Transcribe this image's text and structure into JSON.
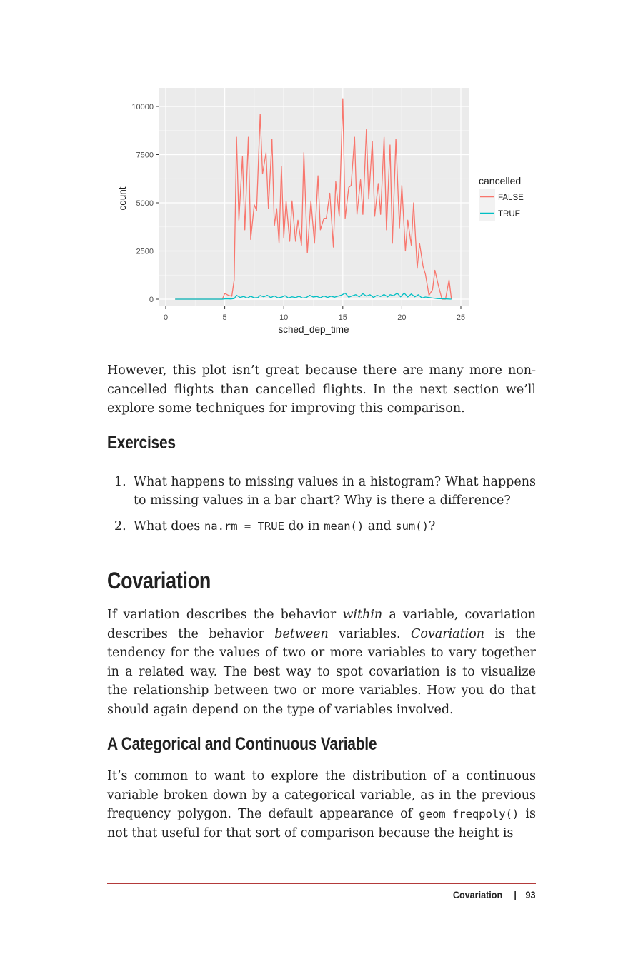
{
  "chart_data": {
    "type": "line",
    "xlabel": "sched_dep_time",
    "ylabel": "count",
    "xlim": [
      0,
      25
    ],
    "ylim": [
      0,
      10000
    ],
    "xticks": [
      "0",
      "5",
      "10",
      "15",
      "20",
      "25"
    ],
    "yticks": [
      "0",
      "2500",
      "5000",
      "7500",
      "10000"
    ],
    "legend_title": "cancelled",
    "legend_position": "right",
    "grid": true,
    "series": [
      {
        "name": "FALSE",
        "color": "#F8766D",
        "x": [
          0.8,
          4.8,
          5.0,
          5.3,
          5.6,
          5.8,
          6.0,
          6.2,
          6.5,
          6.7,
          7.0,
          7.2,
          7.5,
          7.7,
          8.0,
          8.2,
          8.5,
          8.7,
          9.0,
          9.2,
          9.4,
          9.6,
          9.8,
          10.0,
          10.2,
          10.5,
          10.7,
          11.0,
          11.2,
          11.5,
          11.7,
          12.0,
          12.3,
          12.6,
          12.9,
          13.1,
          13.4,
          13.6,
          13.9,
          14.2,
          14.4,
          14.7,
          15.0,
          15.2,
          15.5,
          15.7,
          16.0,
          16.2,
          16.5,
          16.7,
          17.0,
          17.2,
          17.5,
          17.7,
          18.0,
          18.2,
          18.5,
          18.7,
          19.0,
          19.2,
          19.5,
          19.8,
          20.0,
          20.3,
          20.5,
          20.8,
          21.0,
          21.3,
          21.5,
          21.8,
          22.0,
          22.3,
          22.6,
          22.8,
          23.1,
          23.4,
          23.7,
          24.0,
          24.2
        ],
        "values": [
          0,
          0,
          300,
          200,
          150,
          1000,
          8400,
          4100,
          7400,
          3600,
          8400,
          3100,
          4900,
          4600,
          9600,
          6500,
          7600,
          4700,
          8300,
          3800,
          4700,
          2900,
          6900,
          3200,
          5100,
          3000,
          5100,
          3000,
          4100,
          2800,
          7600,
          2400,
          5100,
          2900,
          6400,
          3600,
          4200,
          4200,
          5500,
          2700,
          6100,
          4300,
          10400,
          4200,
          5800,
          5900,
          8400,
          4400,
          6200,
          4400,
          8800,
          5200,
          8200,
          4300,
          6000,
          4400,
          8400,
          3600,
          8000,
          2900,
          8300,
          3700,
          5900,
          2500,
          4100,
          2800,
          5000,
          1600,
          2900,
          1700,
          1300,
          200,
          500,
          1500,
          700,
          0,
          0,
          1000,
          0
        ]
      },
      {
        "name": "TRUE",
        "color": "#00BFC4",
        "x": [
          0.8,
          4.8,
          5.1,
          5.5,
          5.8,
          6.0,
          6.3,
          6.6,
          6.9,
          7.2,
          7.5,
          7.8,
          8.0,
          8.3,
          8.6,
          8.9,
          9.2,
          9.5,
          9.8,
          10.1,
          10.4,
          10.7,
          11.0,
          11.3,
          11.6,
          11.9,
          12.2,
          12.5,
          12.8,
          13.1,
          13.4,
          13.7,
          14.0,
          14.3,
          14.6,
          14.9,
          15.2,
          15.5,
          15.8,
          16.1,
          16.4,
          16.7,
          17.0,
          17.3,
          17.6,
          17.9,
          18.2,
          18.5,
          18.8,
          19.0,
          19.3,
          19.6,
          19.9,
          20.2,
          20.5,
          20.8,
          21.1,
          21.4,
          21.7,
          22.0,
          22.3,
          22.6,
          23.0,
          23.4,
          23.8,
          24.2
        ],
        "values": [
          0,
          0,
          20,
          10,
          30,
          200,
          90,
          140,
          60,
          150,
          70,
          80,
          190,
          120,
          200,
          80,
          170,
          70,
          100,
          180,
          60,
          120,
          80,
          150,
          60,
          80,
          200,
          110,
          140,
          70,
          170,
          90,
          150,
          100,
          160,
          210,
          310,
          100,
          170,
          230,
          120,
          280,
          160,
          230,
          90,
          200,
          140,
          240,
          120,
          230,
          180,
          310,
          120,
          320,
          110,
          270,
          120,
          230,
          60,
          110,
          90,
          60,
          30,
          20,
          10,
          0
        ]
      }
    ]
  },
  "para1": "However, this plot isn’t great because there are many more non-cancelled flights than cancelled flights. In the next section we’ll explore some techniques for improving this comparison.",
  "exercises": {
    "heading": "Exercises",
    "items": [
      {
        "num": "1.",
        "text": "What happens to missing values in a histogram? What happens to missing values in a bar chart? Why is there a difference?"
      },
      {
        "num": "2.",
        "pre": "What does ",
        "code1": "na.rm = TRUE",
        "mid": " do in ",
        "code2": "mean()",
        "and": " and ",
        "code3": "sum()",
        "end": "?"
      }
    ]
  },
  "covariation": {
    "heading": "Covariation",
    "p_a": "If variation describes the behavior ",
    "p_within": "within",
    "p_b": " a variable, covariation describes the behavior ",
    "p_between": "between",
    "p_c": " variables. ",
    "p_cov": "Covariation",
    "p_d": " is the tendency for the values of two or more variables to vary together in a related way. The best way to spot covariation is to visualize the relationship between two or more variables. How you do that should again depend on the type of variables involved."
  },
  "catcont": {
    "heading": "A Categorical and Continuous Variable",
    "p_a": "It’s common to want to explore the distribution of a continuous variable broken down by a categorical variable, as in the previous frequency polygon. The default appearance of ",
    "code": "geom_freqpoly()",
    "p_b": " is not that useful for that sort of comparison because the height is"
  },
  "footer": {
    "section": "Covariation",
    "page": "93"
  }
}
